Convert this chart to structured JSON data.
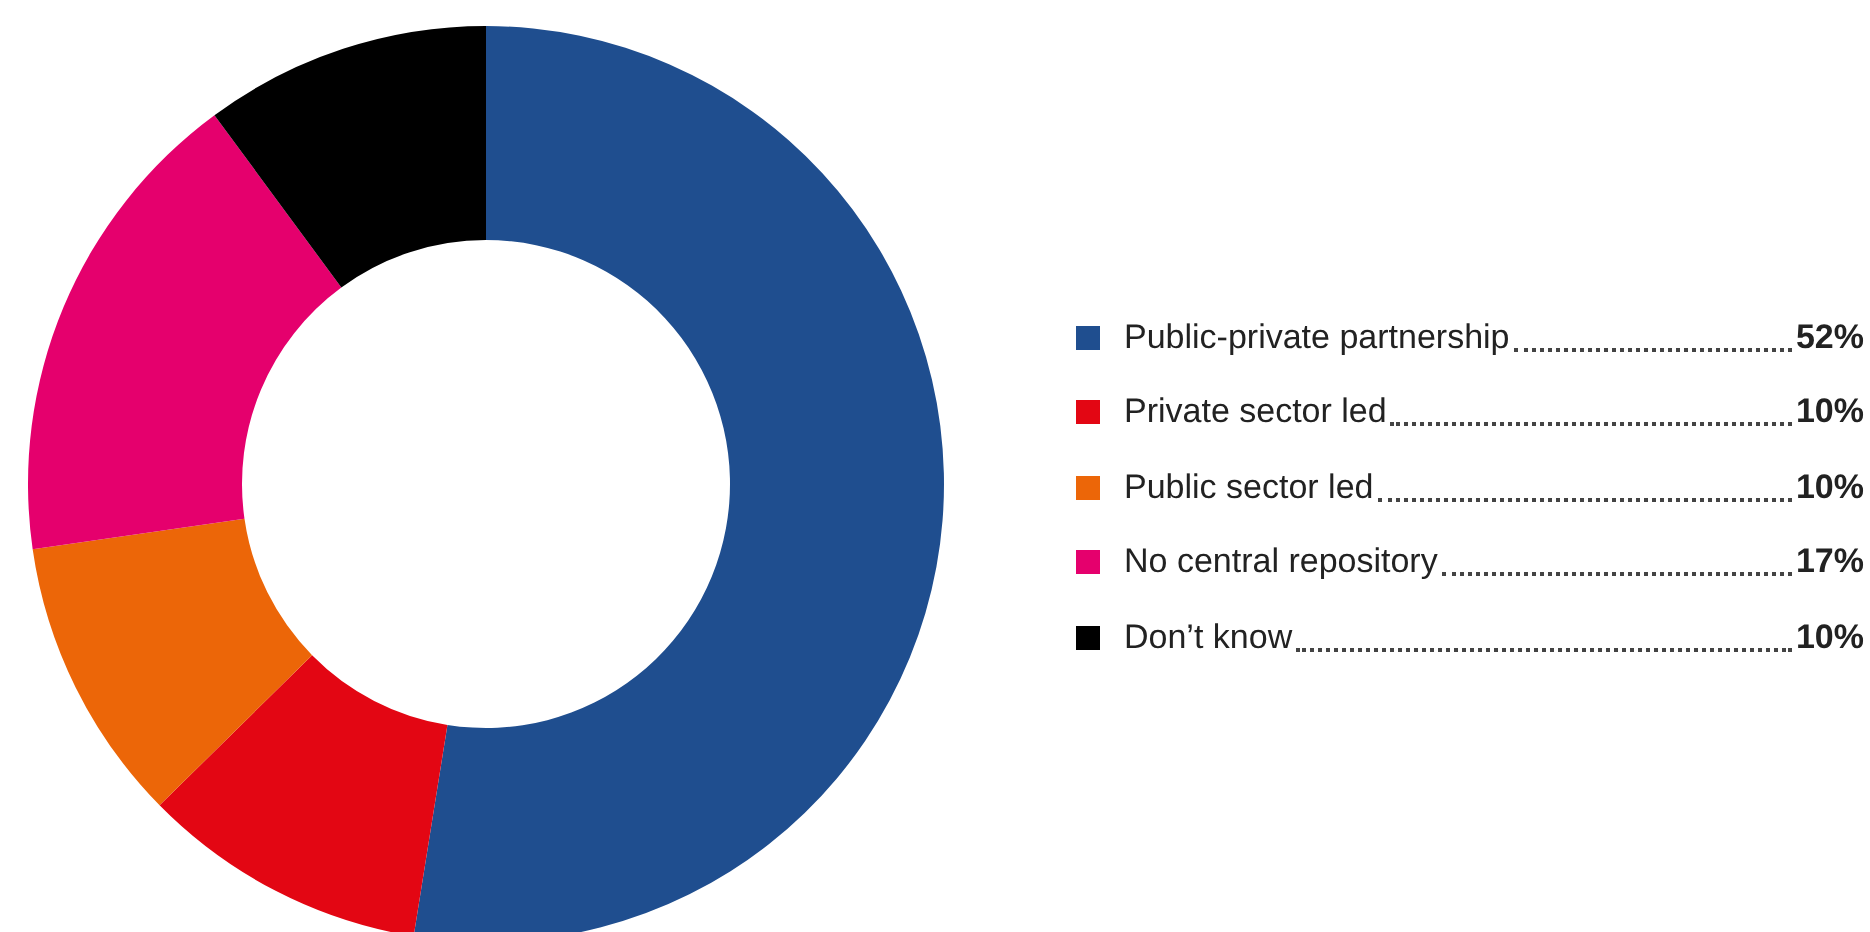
{
  "chart_data": {
    "type": "donut",
    "categories": [
      "Public-private partnership",
      "Private sector led",
      "Public sector led",
      "No central repository",
      "Don’t know"
    ],
    "values": [
      52,
      10,
      10,
      17,
      10
    ],
    "value_labels": [
      "52%",
      "10%",
      "10%",
      "17%",
      "10%"
    ],
    "colors": [
      "#1f4e8f",
      "#e30613",
      "#ec6608",
      "#e5006d",
      "#000000"
    ],
    "legend": "right"
  }
}
